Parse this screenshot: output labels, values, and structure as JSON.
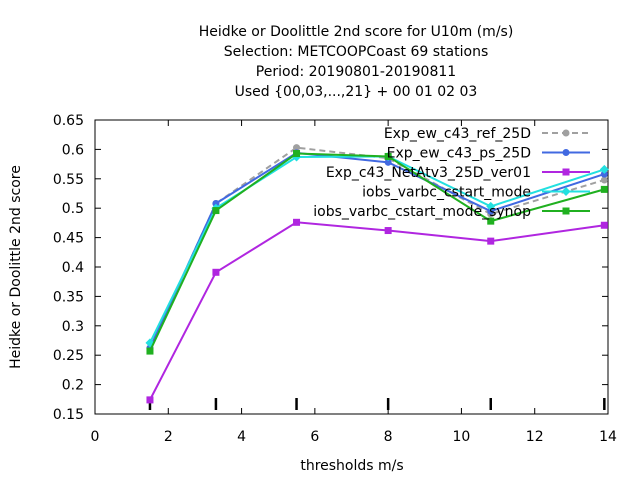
{
  "chart_data": {
    "type": "line",
    "title_lines": [
      "Heidke or Doolittle 2nd score  for U10m (m/s)",
      "Selection: METCOOPCoast     69 stations",
      "Period: 20190801-20190811",
      "Used {00,03,...,21} + 00 01 02 03"
    ],
    "xlabel": "thresholds m/s",
    "ylabel": "Heidke or Doolittle 2nd score",
    "xlim": [
      0,
      14
    ],
    "ylim": [
      0.15,
      0.65
    ],
    "x_ticks": [
      0,
      2,
      4,
      6,
      8,
      10,
      12,
      14
    ],
    "y_ticks": [
      0.15,
      0.2,
      0.25,
      0.3,
      0.35,
      0.4,
      0.45,
      0.5,
      0.55,
      0.6,
      0.65
    ],
    "x_tick_labels": [
      "0",
      "2",
      "4",
      "6",
      "8",
      "10",
      "12",
      "14"
    ],
    "y_tick_labels": [
      "0.15",
      "0.2",
      "0.25",
      "0.3",
      "0.35",
      "0.4",
      "0.45",
      "0.5",
      "0.55",
      "0.6",
      "0.65"
    ],
    "threshold_markers": [
      1.5,
      3.3,
      5.5,
      8.0,
      10.8,
      13.9
    ],
    "x": [
      1.5,
      3.3,
      5.5,
      8.0,
      10.8,
      13.9
    ],
    "grid": false,
    "legend_position": "top-right",
    "series": [
      {
        "name": "Exp_ew_c43_ref_25D",
        "color": "#a0a0a0",
        "dashed": true,
        "marker": "circle",
        "values": [
          0.262,
          0.508,
          0.603,
          0.585,
          0.49,
          0.548
        ]
      },
      {
        "name": "Exp_ew_c43_ps_25D",
        "color": "#4169e1",
        "dashed": false,
        "marker": "circle",
        "values": [
          0.262,
          0.508,
          0.594,
          0.578,
          0.495,
          0.558
        ]
      },
      {
        "name": "Exp_c43_NetAtv3_25D_ver01",
        "color": "#b026e0",
        "dashed": false,
        "marker": "square",
        "values": [
          0.174,
          0.391,
          0.476,
          0.462,
          0.444,
          0.471
        ]
      },
      {
        "name": "iobs_varbc_cstart_mode",
        "color": "#22e0e0",
        "dashed": false,
        "marker": "diamond",
        "values": [
          0.271,
          0.5,
          0.587,
          0.588,
          0.503,
          0.566
        ]
      },
      {
        "name": "iobs_varbc_cstart_mode_synop",
        "color": "#20b020",
        "dashed": false,
        "marker": "square",
        "values": [
          0.257,
          0.496,
          0.593,
          0.588,
          0.478,
          0.532
        ]
      }
    ]
  }
}
